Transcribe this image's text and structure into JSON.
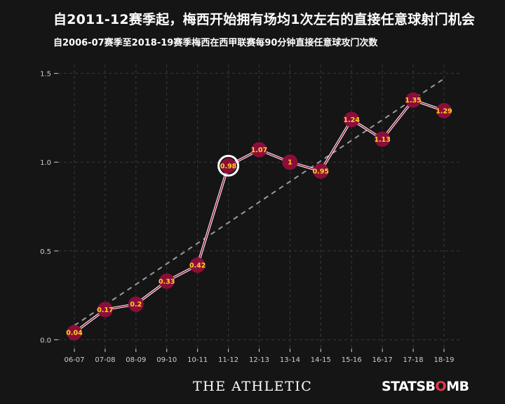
{
  "chart_data": {
    "type": "line",
    "title": "自2011-12赛季起，梅西开始拥有场均1次左右的直接任意球射门机会",
    "subtitle": "自2006-07赛季至2018-19赛季梅西在西甲联赛每90分钟直接任意球攻门次数",
    "xlabel": "",
    "ylabel": "",
    "categories": [
      "06-07",
      "07-08",
      "08-09",
      "09-10",
      "10-11",
      "11-12",
      "12-13",
      "13-14",
      "14-15",
      "15-16",
      "16-17",
      "17-18",
      "18-19"
    ],
    "values": [
      0.04,
      0.17,
      0.2,
      0.33,
      0.42,
      0.98,
      1.07,
      1,
      0.95,
      1.24,
      1.13,
      1.35,
      1.29
    ],
    "value_labels": [
      "0.04",
      "0.17",
      "0.2",
      "0.33",
      "0.42",
      "0.98",
      "1.07",
      "1",
      "0.95",
      "1.24",
      "1.13",
      "1.35",
      "1.29"
    ],
    "ylim": [
      -0.05,
      1.55
    ],
    "yticks": [
      0.0,
      0.5,
      1.0,
      1.5
    ],
    "ytick_labels": [
      "0.0",
      "0.5",
      "1.0",
      "1.5"
    ],
    "trendline": {
      "start": 0.08,
      "end": 1.47
    },
    "highlight_index": 5,
    "grid": true,
    "colors": {
      "background": "#151515",
      "line": "#f4a9b8",
      "marker_fill": "#8b0e3a",
      "label_text": "#ffd21f",
      "grid": "#3a3a3a",
      "trend": "#9a9a9a",
      "highlight_ring": "#ffffff",
      "axis_text": "#cfcfcf"
    }
  },
  "footer": {
    "athletic_logo": "THE ATHLETIC",
    "statsbomb_logo_part1": "STATSB",
    "statsbomb_logo_part2": "MB",
    "statsbomb_logo_o": "O"
  }
}
